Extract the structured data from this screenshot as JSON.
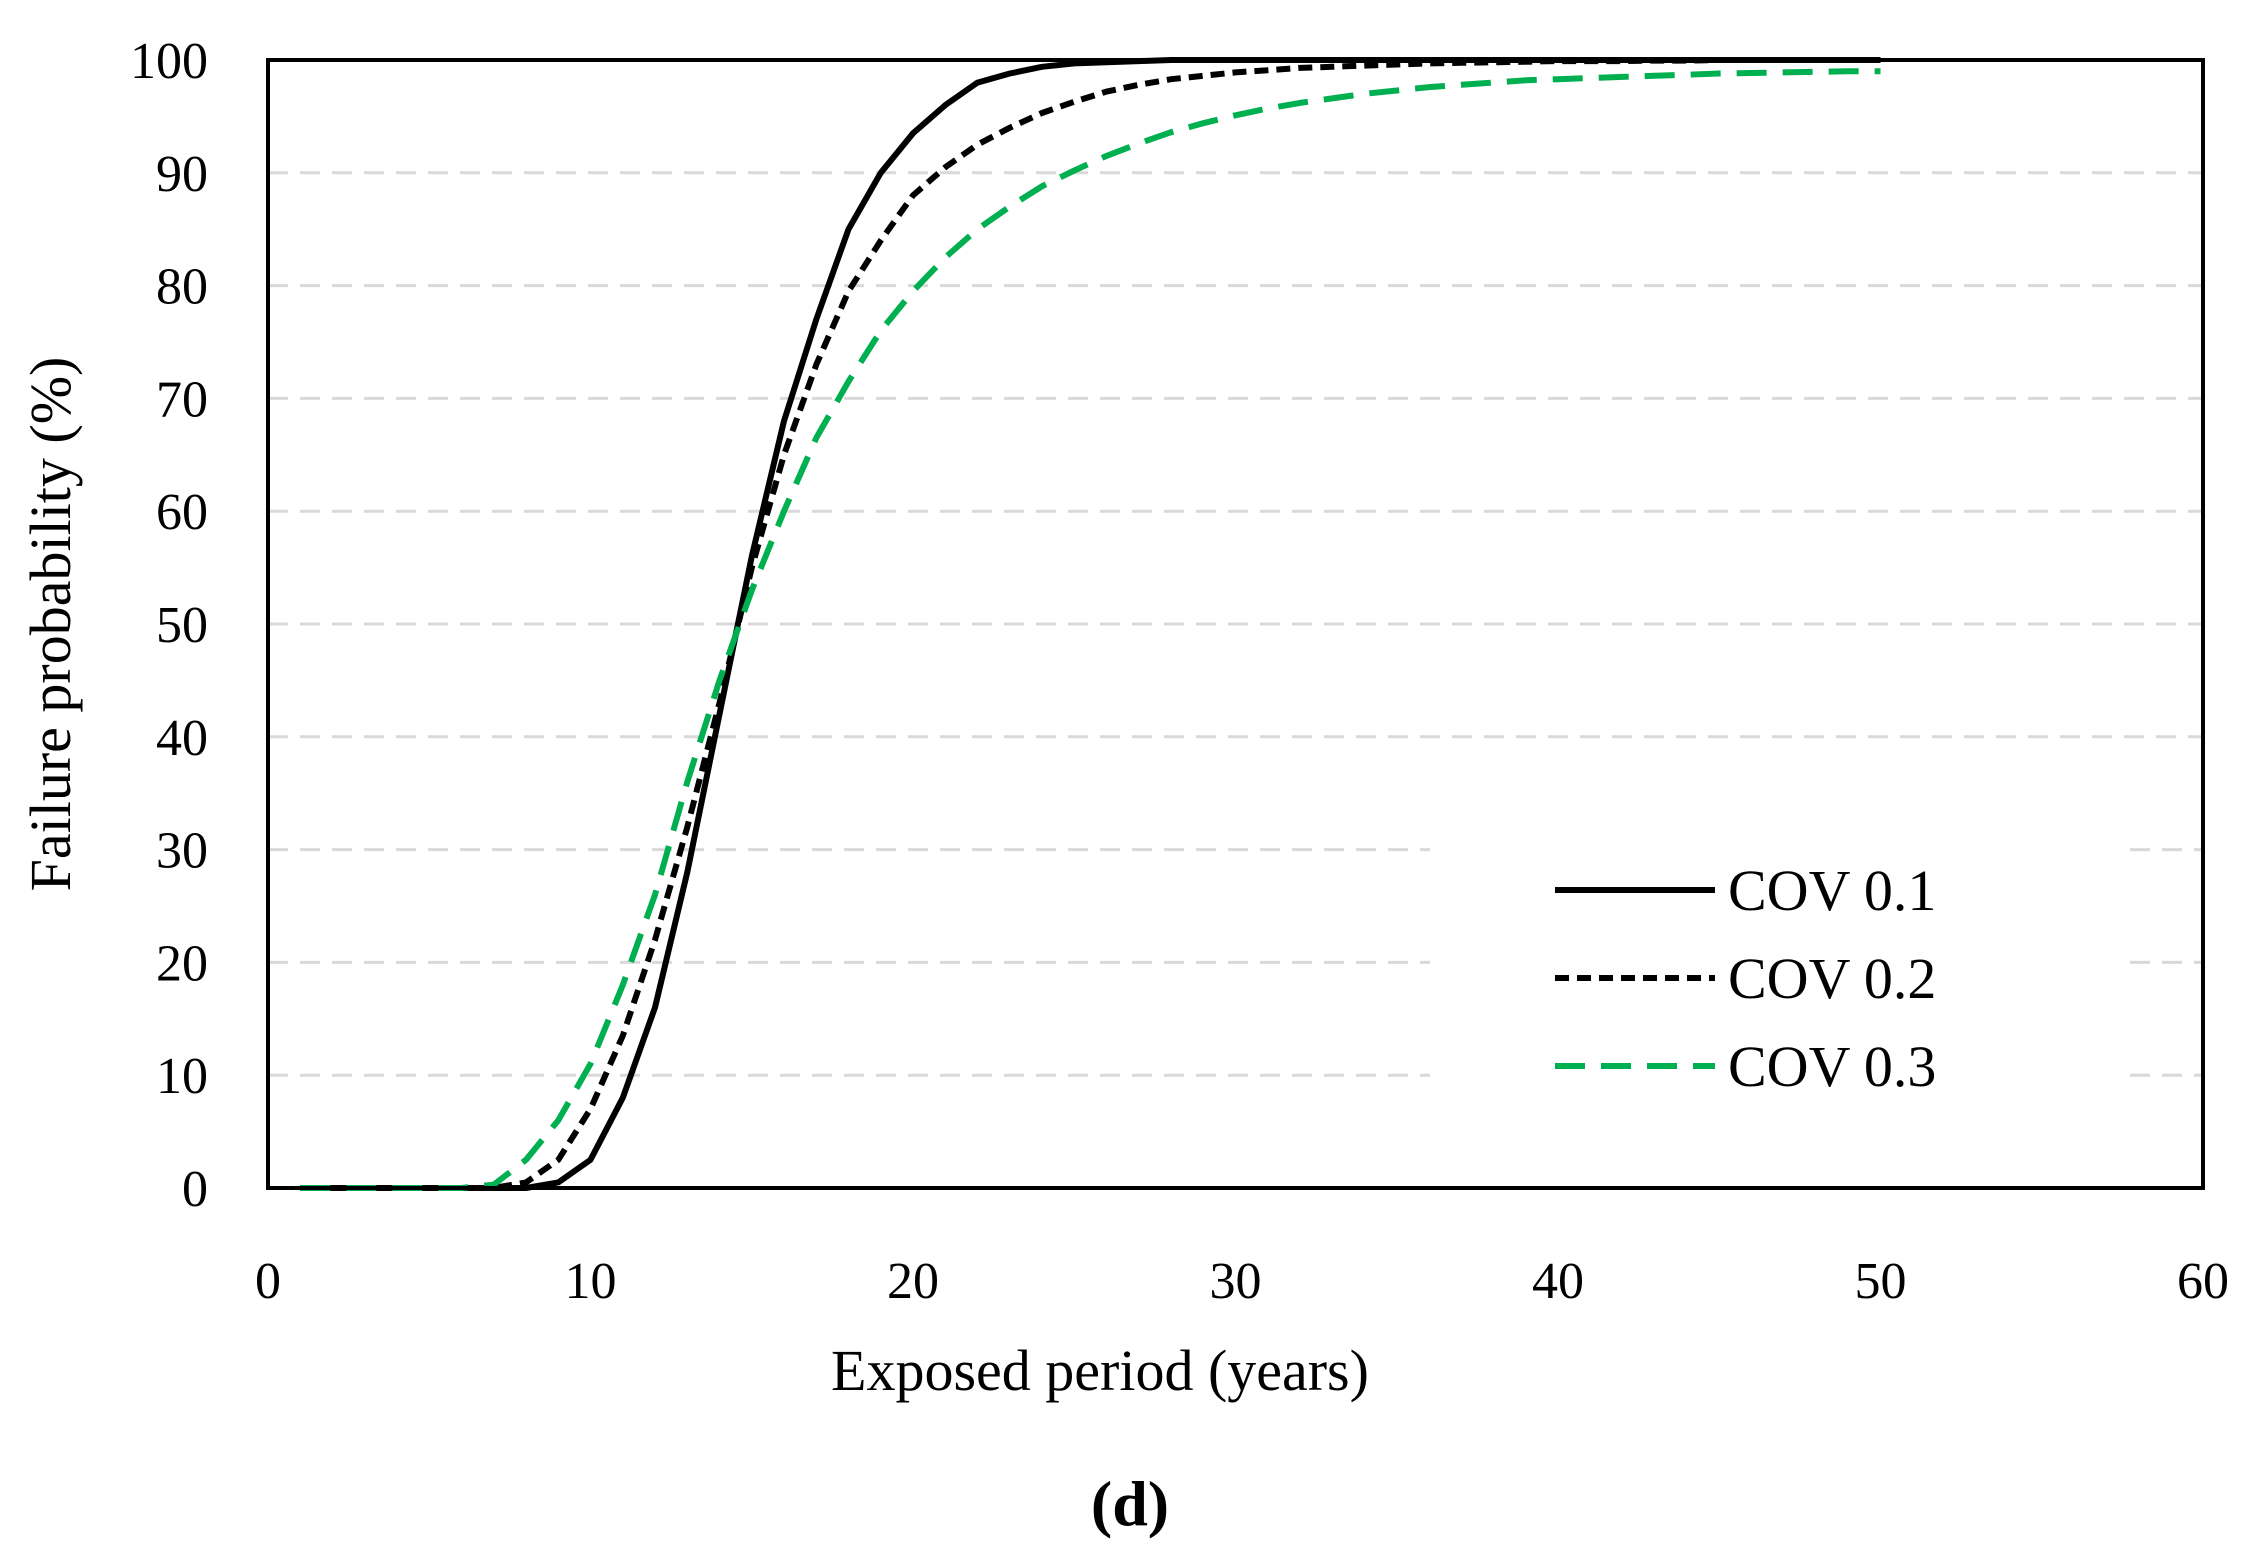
{
  "chart_data": {
    "type": "line",
    "title": "",
    "xlabel": "Exposed period (years)",
    "ylabel": "Failure probability (%)",
    "xlim": [
      0,
      60
    ],
    "ylim": [
      0,
      100
    ],
    "xticks": [
      "0",
      "10",
      "20",
      "30",
      "40",
      "50",
      "60"
    ],
    "yticks": [
      "0",
      "10",
      "20",
      "30",
      "40",
      "50",
      "60",
      "70",
      "80",
      "90",
      "100"
    ],
    "grid": "horizontal dashed",
    "legend_position": "bottom-right",
    "panel_label": "(d)",
    "series": [
      {
        "name": "COV 0.1",
        "color": "#000000",
        "style": "solid",
        "x": [
          1,
          2,
          3,
          4,
          5,
          6,
          7,
          8,
          9,
          10,
          11,
          12,
          13,
          14,
          15,
          16,
          17,
          18,
          19,
          20,
          21,
          22,
          23,
          24,
          25,
          26,
          27,
          28,
          29,
          30,
          31,
          32,
          33,
          34,
          35,
          36,
          37,
          38,
          39,
          40,
          41,
          42,
          43,
          44,
          45,
          46,
          47,
          48,
          49,
          50
        ],
        "values": [
          0,
          0,
          0,
          0,
          0,
          0,
          0,
          0,
          0.5,
          2.5,
          8,
          16,
          28,
          42,
          56,
          68,
          77,
          85,
          90,
          93.5,
          96,
          98,
          98.8,
          99.4,
          99.7,
          99.8,
          99.9,
          100,
          100,
          100,
          100,
          100,
          100,
          100,
          100,
          100,
          100,
          100,
          100,
          100,
          100,
          100,
          100,
          100,
          100,
          100,
          100,
          100,
          100,
          100
        ]
      },
      {
        "name": "COV 0.2",
        "color": "#000000",
        "style": "short-dash",
        "x": [
          1,
          2,
          3,
          4,
          5,
          6,
          7,
          8,
          9,
          10,
          11,
          12,
          13,
          14,
          15,
          16,
          17,
          18,
          19,
          20,
          21,
          22,
          23,
          24,
          25,
          26,
          27,
          28,
          29,
          30,
          31,
          32,
          33,
          34,
          35,
          36,
          37,
          38,
          39,
          40,
          41,
          42,
          43,
          44,
          45,
          46,
          47,
          48,
          49,
          50
        ],
        "values": [
          0,
          0,
          0,
          0,
          0,
          0,
          0,
          0.5,
          2.5,
          7,
          13.5,
          22,
          32,
          43,
          55,
          65,
          73,
          79.5,
          84,
          88,
          90.5,
          92.5,
          94,
          95.3,
          96.3,
          97.2,
          97.8,
          98.3,
          98.6,
          98.9,
          99.1,
          99.3,
          99.4,
          99.5,
          99.6,
          99.7,
          99.75,
          99.8,
          99.85,
          99.9,
          99.9,
          99.9,
          99.95,
          99.95,
          100,
          100,
          100,
          100,
          100,
          100
        ]
      },
      {
        "name": "COV 0.3",
        "color": "#00b050",
        "style": "long-dash",
        "x": [
          1,
          2,
          3,
          4,
          5,
          6,
          7,
          8,
          9,
          10,
          11,
          12,
          13,
          14,
          15,
          16,
          17,
          18,
          19,
          20,
          21,
          22,
          23,
          24,
          25,
          26,
          27,
          28,
          29,
          30,
          31,
          32,
          33,
          34,
          35,
          36,
          37,
          38,
          39,
          40,
          41,
          42,
          43,
          44,
          45,
          46,
          47,
          48,
          49,
          50
        ],
        "values": [
          0,
          0,
          0,
          0,
          0,
          0,
          0.3,
          2.5,
          6,
          11,
          18,
          26,
          36,
          45,
          53,
          60,
          66.5,
          71.5,
          76,
          79.5,
          82.5,
          85,
          87,
          88.8,
          90.2,
          91.5,
          92.6,
          93.6,
          94.4,
          95.1,
          95.7,
          96.2,
          96.6,
          97,
          97.3,
          97.6,
          97.8,
          98,
          98.2,
          98.3,
          98.4,
          98.5,
          98.6,
          98.7,
          98.8,
          98.85,
          98.9,
          98.95,
          99,
          99
        ]
      }
    ]
  }
}
